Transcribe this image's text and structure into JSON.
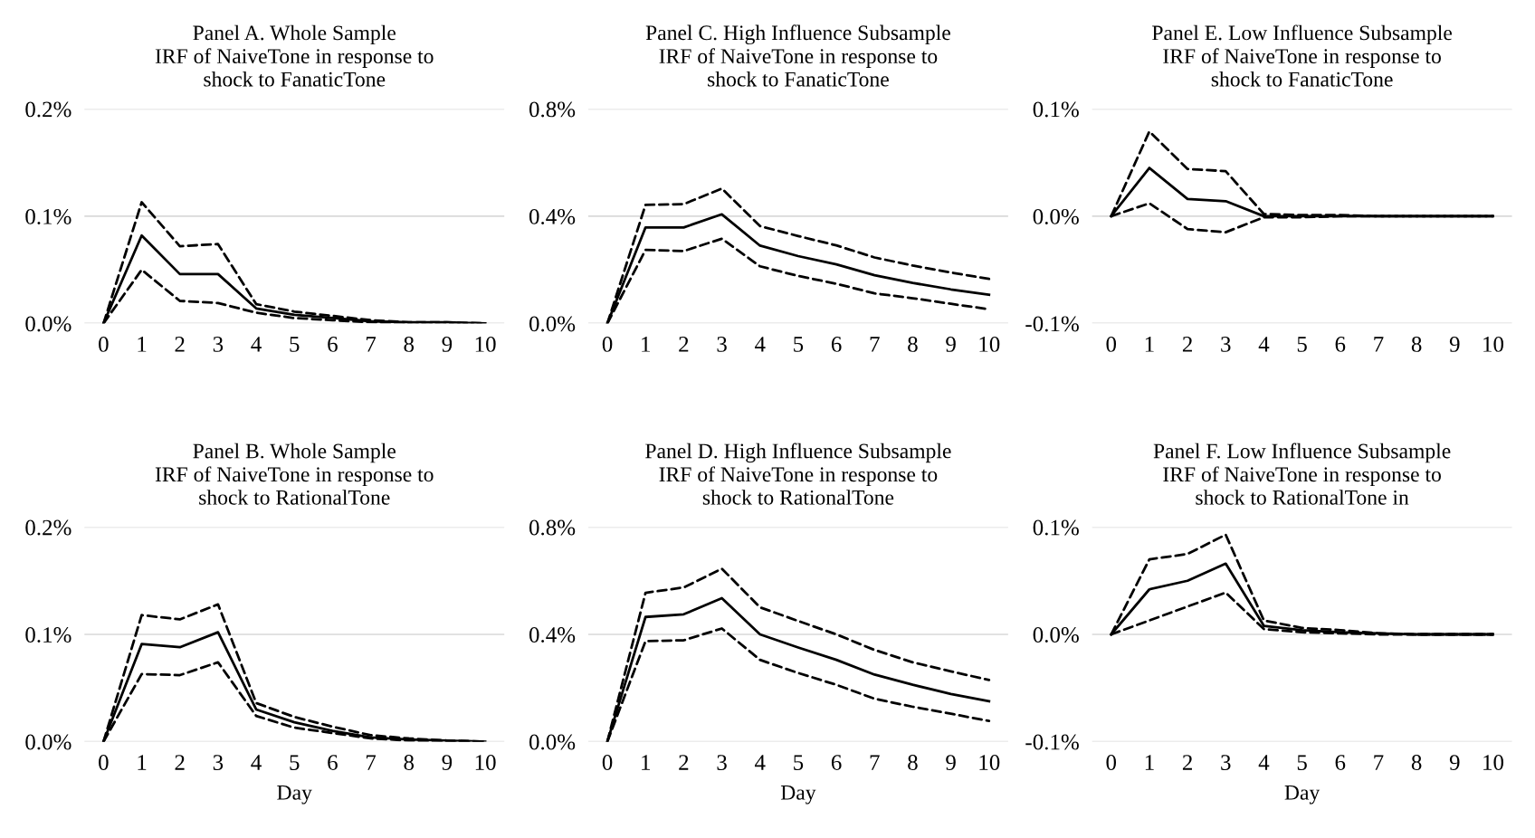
{
  "chart_data": [
    {
      "type": "line",
      "title": "Panel A. Whole Sample\nIRF of NaiveTone in response to\nshock to FanaticTone",
      "categories": [
        "0",
        "1",
        "2",
        "3",
        "4",
        "5",
        "6",
        "7",
        "8",
        "9",
        "10"
      ],
      "ylim": [
        0,
        0.2
      ],
      "yticks": [
        {
          "value": 0,
          "label": "0.0%"
        },
        {
          "value": 0.1,
          "label": "0.1%"
        },
        {
          "value": 0.2,
          "label": "0.2%"
        }
      ],
      "grid": "y",
      "series": [
        {
          "color": "#000000",
          "line_style": "solid",
          "values": [
            0,
            0.082,
            0.046,
            0.046,
            0.014,
            0.008,
            0.005,
            0.002,
            0.001,
            0.001,
            0
          ]
        },
        {
          "color": "#000000",
          "line_style": "dashed",
          "values": [
            0,
            0.113,
            0.072,
            0.074,
            0.018,
            0.011,
            0.007,
            0.003,
            0.001,
            0.001,
            0
          ]
        },
        {
          "color": "#000000",
          "line_style": "dashed",
          "values": [
            0,
            0.05,
            0.021,
            0.019,
            0.01,
            0.005,
            0.003,
            0.001,
            0,
            0,
            0
          ]
        }
      ]
    },
    {
      "type": "line",
      "title": "Panel C. High Influence Subsample\nIRF of NaiveTone in response to\nshock to FanaticTone",
      "categories": [
        "0",
        "1",
        "2",
        "3",
        "4",
        "5",
        "6",
        "7",
        "8",
        "9",
        "10"
      ],
      "ylim": [
        0,
        0.8
      ],
      "yticks": [
        {
          "value": 0,
          "label": "0.0%"
        },
        {
          "value": 0.4,
          "label": "0.4%"
        },
        {
          "value": 0.8,
          "label": "0.8%"
        }
      ],
      "grid": "y",
      "series": [
        {
          "color": "#000000",
          "line_style": "solid",
          "values": [
            0,
            0.358,
            0.358,
            0.407,
            0.29,
            0.251,
            0.22,
            0.18,
            0.151,
            0.127,
            0.107
          ]
        },
        {
          "color": "#000000",
          "line_style": "dashed",
          "values": [
            0,
            0.442,
            0.445,
            0.503,
            0.363,
            0.326,
            0.291,
            0.246,
            0.216,
            0.19,
            0.166
          ]
        },
        {
          "color": "#000000",
          "line_style": "dashed",
          "values": [
            0,
            0.274,
            0.27,
            0.316,
            0.213,
            0.177,
            0.148,
            0.112,
            0.094,
            0.073,
            0.053
          ]
        }
      ]
    },
    {
      "type": "line",
      "title": "Panel E. Low Influence Subsample\nIRF of NaiveTone in response to\nshock to FanaticTone",
      "categories": [
        "0",
        "1",
        "2",
        "3",
        "4",
        "5",
        "6",
        "7",
        "8",
        "9",
        "10"
      ],
      "ylim": [
        -0.1,
        0.1
      ],
      "yticks": [
        {
          "value": -0.1,
          "label": "-0.1%"
        },
        {
          "value": 0,
          "label": "0.0%"
        },
        {
          "value": 0.1,
          "label": "0.1%"
        }
      ],
      "grid": "y",
      "series": [
        {
          "color": "#000000",
          "line_style": "solid",
          "values": [
            0,
            0.045,
            0.016,
            0.014,
            0,
            0,
            0,
            0,
            0,
            0,
            0
          ]
        },
        {
          "color": "#000000",
          "line_style": "dashed",
          "values": [
            0,
            0.079,
            0.044,
            0.042,
            0.002,
            0.001,
            0.001,
            0,
            0,
            0,
            0
          ]
        },
        {
          "color": "#000000",
          "line_style": "dashed",
          "values": [
            0,
            0.012,
            -0.012,
            -0.015,
            -0.001,
            -0.001,
            0,
            0,
            0,
            0,
            0
          ]
        }
      ]
    },
    {
      "type": "line",
      "title": "Panel B. Whole Sample\nIRF of NaiveTone in response to\nshock to RationalTone",
      "xlabel": "Day",
      "categories": [
        "0",
        "1",
        "2",
        "3",
        "4",
        "5",
        "6",
        "7",
        "8",
        "9",
        "10"
      ],
      "ylim": [
        0,
        0.2
      ],
      "yticks": [
        {
          "value": 0,
          "label": "0.0%"
        },
        {
          "value": 0.1,
          "label": "0.1%"
        },
        {
          "value": 0.2,
          "label": "0.2%"
        }
      ],
      "grid": "y",
      "series": [
        {
          "color": "#000000",
          "line_style": "solid",
          "values": [
            0,
            0.091,
            0.088,
            0.102,
            0.03,
            0.018,
            0.01,
            0.004,
            0.002,
            0.001,
            0
          ]
        },
        {
          "color": "#000000",
          "line_style": "dashed",
          "values": [
            0,
            0.118,
            0.114,
            0.128,
            0.036,
            0.023,
            0.014,
            0.006,
            0.003,
            0.001,
            0
          ]
        },
        {
          "color": "#000000",
          "line_style": "dashed",
          "values": [
            0,
            0.063,
            0.062,
            0.074,
            0.024,
            0.013,
            0.008,
            0.003,
            0.001,
            0,
            0
          ]
        }
      ]
    },
    {
      "type": "line",
      "title": "Panel D. High Influence Subsample\nIRF of NaiveTone in response to\nshock to RationalTone",
      "xlabel": "Day",
      "categories": [
        "0",
        "1",
        "2",
        "3",
        "4",
        "5",
        "6",
        "7",
        "8",
        "9",
        "10"
      ],
      "ylim": [
        0,
        0.8
      ],
      "yticks": [
        {
          "value": 0,
          "label": "0.0%"
        },
        {
          "value": 0.4,
          "label": "0.4%"
        },
        {
          "value": 0.8,
          "label": "0.8%"
        }
      ],
      "grid": "y",
      "series": [
        {
          "color": "#000000",
          "line_style": "solid",
          "values": [
            0,
            0.465,
            0.475,
            0.535,
            0.4,
            0.351,
            0.305,
            0.25,
            0.212,
            0.178,
            0.151
          ]
        },
        {
          "color": "#000000",
          "line_style": "dashed",
          "values": [
            0,
            0.555,
            0.575,
            0.645,
            0.501,
            0.45,
            0.4,
            0.342,
            0.296,
            0.262,
            0.23
          ]
        },
        {
          "color": "#000000",
          "line_style": "dashed",
          "values": [
            0,
            0.375,
            0.378,
            0.422,
            0.305,
            0.256,
            0.212,
            0.16,
            0.13,
            0.104,
            0.077
          ]
        }
      ]
    },
    {
      "type": "line",
      "title": "Panel F. Low Influence Subsample\nIRF of NaiveTone in response to\nshock to RationalTone in",
      "xlabel": "Day",
      "categories": [
        "0",
        "1",
        "2",
        "3",
        "4",
        "5",
        "6",
        "7",
        "8",
        "9",
        "10"
      ],
      "ylim": [
        -0.1,
        0.1
      ],
      "yticks": [
        {
          "value": -0.1,
          "label": "-0.1%"
        },
        {
          "value": 0,
          "label": "0.0%"
        },
        {
          "value": 0.1,
          "label": "0.1%"
        }
      ],
      "grid": "y",
      "series": [
        {
          "color": "#000000",
          "line_style": "solid",
          "values": [
            0,
            0.042,
            0.05,
            0.066,
            0.008,
            0.004,
            0.002,
            0.001,
            0,
            0,
            0
          ]
        },
        {
          "color": "#000000",
          "line_style": "dashed",
          "values": [
            0,
            0.07,
            0.075,
            0.093,
            0.013,
            0.006,
            0.004,
            0.001,
            0,
            0,
            0
          ]
        },
        {
          "color": "#000000",
          "line_style": "dashed",
          "values": [
            0,
            0.013,
            0.026,
            0.039,
            0.005,
            0.002,
            0.001,
            0,
            0,
            0,
            0
          ]
        }
      ]
    }
  ]
}
